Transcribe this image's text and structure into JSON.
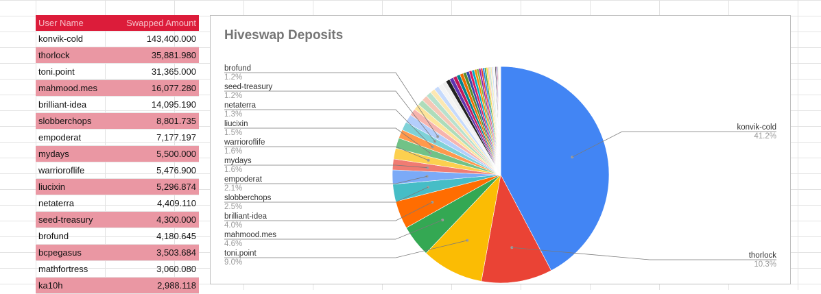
{
  "sheet": {
    "headers": {
      "name": "User Name",
      "amount": "Swapped Amount"
    },
    "rows": [
      {
        "name": "konvik-cold",
        "amount": "143,400.000"
      },
      {
        "name": "thorlock",
        "amount": "35,881.980"
      },
      {
        "name": "toni.point",
        "amount": "31,365.000"
      },
      {
        "name": "mahmood.mes",
        "amount": "16,077.280"
      },
      {
        "name": "brilliant-idea",
        "amount": "14,095.190"
      },
      {
        "name": "slobberchops",
        "amount": "8,801.735"
      },
      {
        "name": "empoderat",
        "amount": "7,177.197"
      },
      {
        "name": "mydays",
        "amount": "5,500.000"
      },
      {
        "name": "warrioroflife",
        "amount": "5,476.900"
      },
      {
        "name": "liucixin",
        "amount": "5,296.874"
      },
      {
        "name": "netaterra",
        "amount": "4,409.110"
      },
      {
        "name": "seed-treasury",
        "amount": "4,300.000"
      },
      {
        "name": "brofund",
        "amount": "4,180.645"
      },
      {
        "name": "bcpegasus",
        "amount": "3,503.684"
      },
      {
        "name": "mathfortress",
        "amount": "3,060.080"
      },
      {
        "name": "ka10h",
        "amount": "2,988.118"
      }
    ]
  },
  "chart_data": {
    "type": "pie",
    "title": "Hiveswap Deposits",
    "slices": [
      {
        "label": "konvik-cold",
        "value": 143400.0,
        "pct": "41.2%",
        "color": "#4285f4",
        "labeled": true
      },
      {
        "label": "thorlock",
        "value": 35881.98,
        "pct": "10.3%",
        "color": "#ea4335",
        "labeled": true
      },
      {
        "label": "toni.point",
        "value": 31365.0,
        "pct": "9.0%",
        "color": "#fbbc04",
        "labeled": true
      },
      {
        "label": "mahmood.mes",
        "value": 16077.28,
        "pct": "4.6%",
        "color": "#34a853",
        "labeled": true
      },
      {
        "label": "brilliant-idea",
        "value": 14095.19,
        "pct": "4.0%",
        "color": "#ff6d01",
        "labeled": true
      },
      {
        "label": "slobberchops",
        "value": 8801.735,
        "pct": "2.5%",
        "color": "#46bdc6",
        "labeled": true
      },
      {
        "label": "empoderat",
        "value": 7177.197,
        "pct": "2.1%",
        "color": "#7baaf7",
        "labeled": true
      },
      {
        "label": "mydays",
        "value": 5500.0,
        "pct": "1.6%",
        "color": "#f07b72",
        "labeled": true
      },
      {
        "label": "warrioroflife",
        "value": 5476.9,
        "pct": "1.6%",
        "color": "#fcd04f",
        "labeled": true
      },
      {
        "label": "liucixin",
        "value": 5296.874,
        "pct": "1.5%",
        "color": "#71c287",
        "labeled": true
      },
      {
        "label": "netaterra",
        "value": 4409.11,
        "pct": "1.3%",
        "color": "#ff994d",
        "labeled": true
      },
      {
        "label": "seed-treasury",
        "value": 4300.0,
        "pct": "1.2%",
        "color": "#7ed1d7",
        "labeled": true
      },
      {
        "label": "brofund",
        "value": 4180.645,
        "pct": "1.2%",
        "color": "#b3cefb",
        "labeled": true
      },
      {
        "label": "bcpegasus",
        "value": 3503.684,
        "pct": "",
        "color": "#f7b4ae",
        "labeled": false
      },
      {
        "label": "mathfortress",
        "value": 3060.08,
        "pct": "",
        "color": "#fde49b",
        "labeled": false
      },
      {
        "label": "ka10h",
        "value": 2988.118,
        "pct": "",
        "color": "#aedcba",
        "labeled": false
      }
    ],
    "others": {
      "count": 44,
      "values": [
        2880,
        2700,
        2500,
        2400,
        2300,
        2200,
        2100,
        2000,
        1900,
        1800,
        1700,
        1600,
        1500,
        1400,
        1300,
        1200,
        1100,
        1000,
        950,
        900,
        850,
        800,
        750,
        700,
        650,
        600,
        550,
        500,
        450,
        400,
        350,
        300,
        260,
        220,
        180,
        150,
        120,
        100,
        80,
        60,
        50,
        40,
        30,
        20
      ],
      "palette": [
        "#f6c7b6",
        "#b7e1cd",
        "#fce8b2",
        "#c6dafc",
        "#f4f4f4",
        "#eeeeee",
        "#212121",
        "#5e35b1",
        "#c2185b",
        "#00838f",
        "#ef6c00",
        "#558b2f",
        "#3949ab",
        "#d81b60",
        "#00acc1",
        "#fb8c00",
        "#7cb342",
        "#8e24aa",
        "#e53935",
        "#1e88e5",
        "#43a047",
        "#fdd835"
      ]
    },
    "legend": "labels"
  }
}
